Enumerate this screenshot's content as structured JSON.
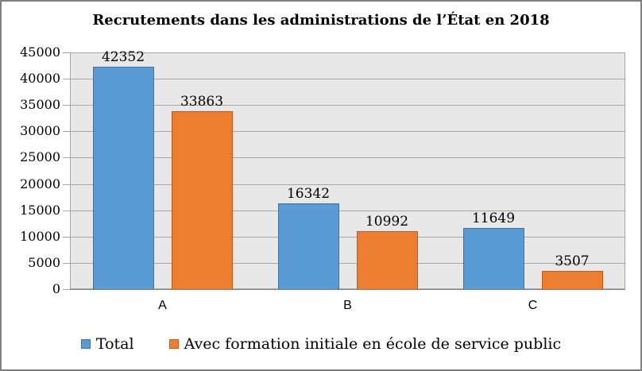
{
  "chart_data": {
    "type": "bar",
    "title": "Recrutements dans les administrations de l’État en 2018",
    "categories": [
      "A",
      "B",
      "C"
    ],
    "series": [
      {
        "name": "Total",
        "color": "#5B9BD5",
        "border_color": "#41719C",
        "values": [
          42352,
          16342,
          11649
        ]
      },
      {
        "name": "Avec formation initiale en école de service public",
        "color": "#ED7D31",
        "border_color": "#BF5B17",
        "values": [
          33863,
          10992,
          3507
        ]
      }
    ],
    "ylim": [
      0,
      45000
    ],
    "ytick_step": 5000,
    "y_ticks": [
      45000,
      40000,
      35000,
      30000,
      25000,
      20000,
      15000,
      10000,
      5000,
      0
    ],
    "grid": true,
    "legend_position": "bottom",
    "plot_bg": "#E8E8E8",
    "gridline_color": "#A6A6A6",
    "axis_color": "#808080",
    "text_color": "#000000"
  }
}
